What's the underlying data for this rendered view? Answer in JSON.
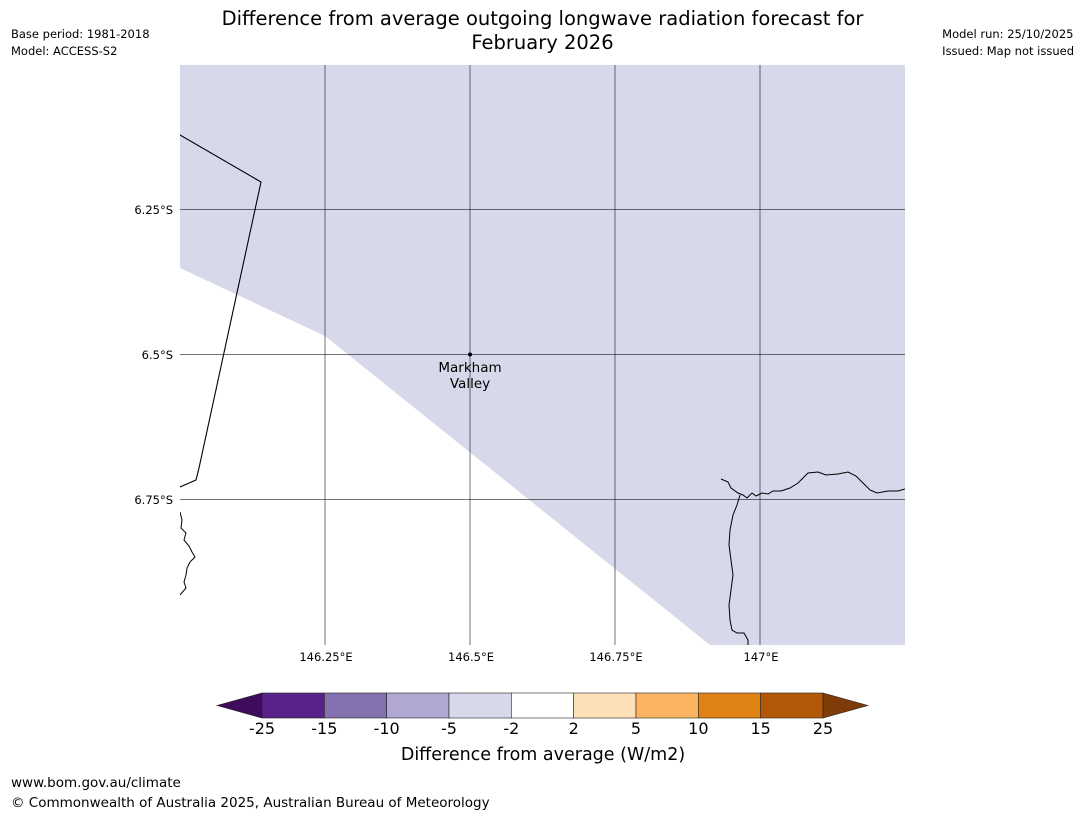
{
  "title": {
    "line1": "Difference from average outgoing longwave radiation forecast for",
    "line2": "February 2026"
  },
  "meta_left": {
    "base_period": "Base period: 1981-2018",
    "model": "Model: ACCESS-S2"
  },
  "meta_right": {
    "model_run": "Model run: 25/10/2025",
    "issued": "Issued: Map not issued"
  },
  "map": {
    "lat_labels": [
      "6.25°S",
      "6.5°S",
      "6.75°S"
    ],
    "lon_labels": [
      "146.25°E",
      "146.5°E",
      "146.75°E",
      "147°E"
    ],
    "place": {
      "line1": "Markham",
      "line2": "Valley"
    },
    "shading_category": "-5 to -2"
  },
  "colorbar": {
    "title": "Difference from average (W/m2)",
    "tick_labels": [
      "-25",
      "-15",
      "-10",
      "-5",
      "-2",
      "2",
      "5",
      "10",
      "15",
      "25"
    ],
    "colors": [
      "#3f0b5c",
      "#59228a",
      "#8471b0",
      "#b0a8d2",
      "#d7d8ea",
      "#ffffff",
      "#fee0b6",
      "#fbb461",
      "#e08214",
      "#b35806",
      "#7f3b08"
    ]
  },
  "footer": {
    "url": "www.bom.gov.au/climate",
    "copyright": "© Commonwealth of Australia 2025, Australian Bureau of Meteorology"
  }
}
